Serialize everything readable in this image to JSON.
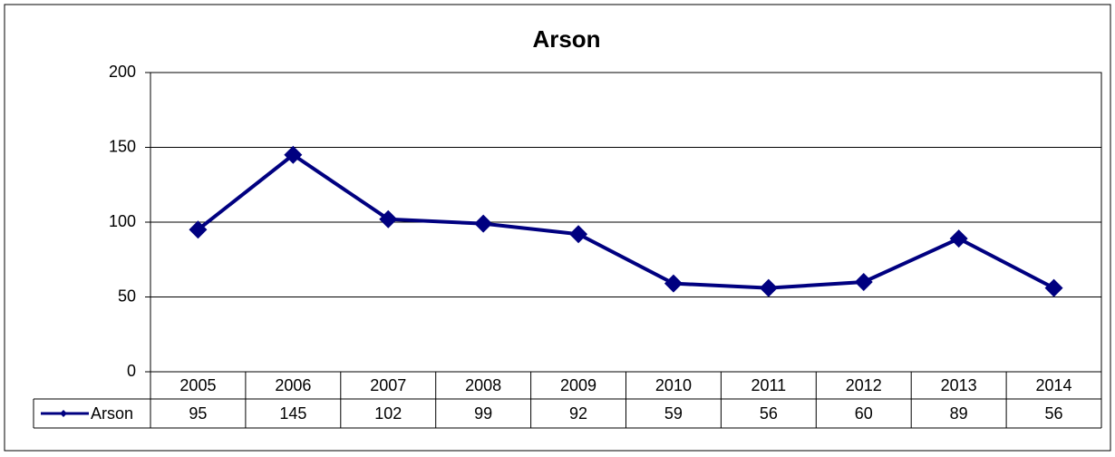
{
  "chart_data": {
    "type": "line",
    "title": "Arson",
    "categories": [
      "2005",
      "2006",
      "2007",
      "2008",
      "2009",
      "2010",
      "2011",
      "2012",
      "2013",
      "2014"
    ],
    "series": [
      {
        "name": "Arson",
        "color": "#000080",
        "values": [
          95,
          145,
          102,
          99,
          92,
          59,
          56,
          60,
          89,
          56
        ]
      }
    ],
    "ylim": [
      0,
      200
    ],
    "yticks": [
      0,
      50,
      100,
      150,
      200
    ],
    "grid": true
  }
}
